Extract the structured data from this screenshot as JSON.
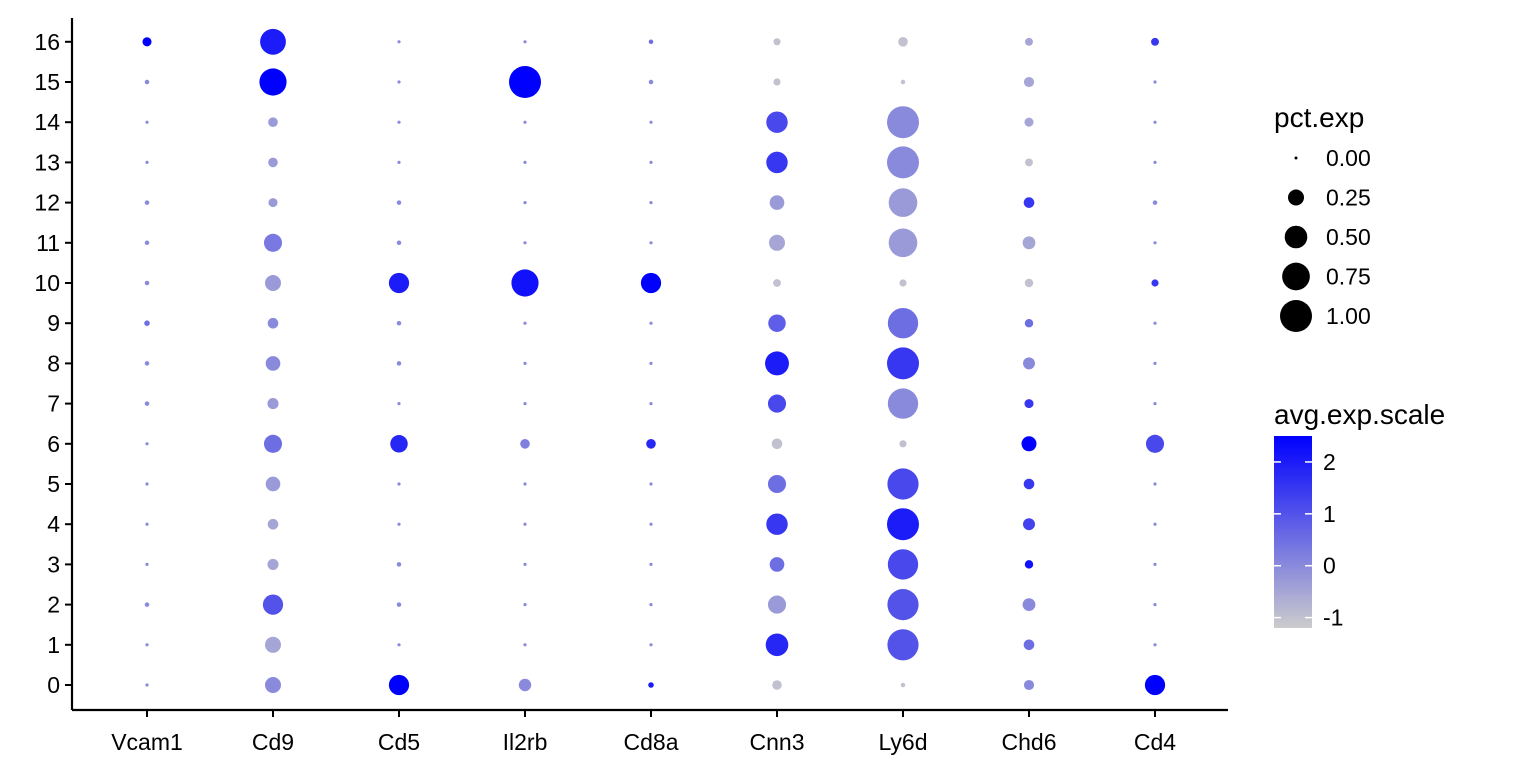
{
  "chart_data": {
    "type": "dotplot",
    "genes": [
      "Vcam1",
      "Cd9",
      "Cd5",
      "Il2rb",
      "Cd8a",
      "Cnn3",
      "Ly6d",
      "Chd6",
      "Cd4"
    ],
    "clusters": [
      "0",
      "1",
      "2",
      "3",
      "4",
      "5",
      "6",
      "7",
      "8",
      "9",
      "10",
      "11",
      "12",
      "13",
      "14",
      "15",
      "16"
    ],
    "pct_exp": [
      [
        0.01,
        0.25,
        0.4,
        0.15,
        0.03,
        0.09,
        0.02,
        0.1,
        0.4
      ],
      [
        0.01,
        0.25,
        0.01,
        0.01,
        0.01,
        0.5,
        0.95,
        0.11,
        0.01
      ],
      [
        0.02,
        0.4,
        0.02,
        0.01,
        0.01,
        0.32,
        0.95,
        0.16,
        0.01
      ],
      [
        0.01,
        0.12,
        0.02,
        0.01,
        0.01,
        0.21,
        0.9,
        0.07,
        0.01
      ],
      [
        0.01,
        0.11,
        0.01,
        0.01,
        0.01,
        0.45,
        1.0,
        0.14,
        0.01
      ],
      [
        0.01,
        0.21,
        0.01,
        0.01,
        0.01,
        0.32,
        0.95,
        0.11,
        0.01
      ],
      [
        0.01,
        0.32,
        0.3,
        0.09,
        0.09,
        0.11,
        0.05,
        0.22,
        0.32
      ],
      [
        0.02,
        0.12,
        0.01,
        0.01,
        0.01,
        0.32,
        0.9,
        0.08,
        0.01
      ],
      [
        0.02,
        0.21,
        0.02,
        0.01,
        0.01,
        0.56,
        1.0,
        0.14,
        0.01
      ],
      [
        0.03,
        0.11,
        0.02,
        0.01,
        0.01,
        0.3,
        0.9,
        0.07,
        0.01
      ],
      [
        0.02,
        0.25,
        0.4,
        0.72,
        0.4,
        0.06,
        0.05,
        0.07,
        0.05
      ],
      [
        0.02,
        0.32,
        0.02,
        0.01,
        0.01,
        0.25,
        0.8,
        0.16,
        0.01
      ],
      [
        0.02,
        0.08,
        0.02,
        0.01,
        0.01,
        0.21,
        0.8,
        0.11,
        0.02
      ],
      [
        0.01,
        0.09,
        0.01,
        0.01,
        0.01,
        0.45,
        1.0,
        0.06,
        0.01
      ],
      [
        0.01,
        0.09,
        0.01,
        0.01,
        0.01,
        0.45,
        1.0,
        0.08,
        0.01
      ],
      [
        0.02,
        0.72,
        0.01,
        1.0,
        0.02,
        0.05,
        0.02,
        0.1,
        0.01
      ],
      [
        0.08,
        0.65,
        0.01,
        0.01,
        0.02,
        0.05,
        0.09,
        0.06,
        0.06
      ]
    ],
    "avg_exp_scale": [
      [
        0.0,
        0.0,
        2.5,
        0.0,
        2.0,
        -1.0,
        -1.0,
        0.0,
        2.5
      ],
      [
        0.0,
        -0.5,
        0.0,
        0.0,
        0.0,
        1.8,
        1.0,
        0.5,
        0.0
      ],
      [
        0.0,
        1.0,
        0.0,
        0.0,
        0.0,
        -0.3,
        1.0,
        0.0,
        0.0
      ],
      [
        0.0,
        -0.5,
        0.0,
        0.0,
        0.0,
        0.5,
        1.2,
        2.2,
        0.0
      ],
      [
        0.0,
        -0.5,
        0.0,
        0.0,
        0.0,
        1.5,
        2.0,
        1.3,
        0.0
      ],
      [
        0.0,
        -0.3,
        0.0,
        0.0,
        0.0,
        0.5,
        1.2,
        1.5,
        0.0
      ],
      [
        0.0,
        0.5,
        1.8,
        0.2,
        1.8,
        -1.0,
        -1.0,
        2.5,
        1.2
      ],
      [
        0.0,
        -0.3,
        0.0,
        0.0,
        0.0,
        1.2,
        0.0,
        1.5,
        0.0
      ],
      [
        0.0,
        0.0,
        0.0,
        0.0,
        0.0,
        2.0,
        1.5,
        0.0,
        0.0
      ],
      [
        0.5,
        0.0,
        0.0,
        0.0,
        0.0,
        0.8,
        0.5,
        0.5,
        0.0
      ],
      [
        0.0,
        -0.3,
        2.0,
        2.2,
        2.5,
        -1.0,
        -1.0,
        -1.0,
        1.5
      ],
      [
        0.0,
        0.3,
        0.0,
        0.0,
        0.0,
        -0.5,
        -0.3,
        -0.5,
        0.0
      ],
      [
        0.0,
        -0.3,
        0.0,
        0.0,
        0.0,
        -0.3,
        -0.3,
        1.5,
        0.0
      ],
      [
        0.0,
        -0.3,
        0.0,
        0.0,
        0.0,
        1.5,
        0.0,
        -1.0,
        0.0
      ],
      [
        0.0,
        -0.3,
        0.0,
        0.0,
        0.0,
        1.2,
        0.0,
        -0.5,
        0.0
      ],
      [
        0.0,
        2.5,
        0.0,
        2.5,
        0.0,
        -1.0,
        -1.0,
        -0.5,
        0.0
      ],
      [
        2.5,
        2.0,
        0.0,
        0.0,
        0.5,
        -1.0,
        -1.0,
        -0.5,
        1.5
      ]
    ],
    "size_legend": {
      "title": "pct.exp",
      "breaks": [
        0.0,
        0.25,
        0.5,
        0.75,
        1.0
      ],
      "labels": [
        "0.00",
        "0.25",
        "0.50",
        "0.75",
        "1.00"
      ]
    },
    "color_legend": {
      "title": "avg.exp.scale",
      "range": [
        -1.2,
        2.5
      ],
      "breaks": [
        2,
        1,
        0,
        -1
      ],
      "labels": [
        "2",
        "1",
        "0",
        "-1"
      ],
      "low_color": "#cccccc",
      "high_color": "#0000ff"
    },
    "xlabel": "",
    "ylabel": "",
    "grid": false
  }
}
